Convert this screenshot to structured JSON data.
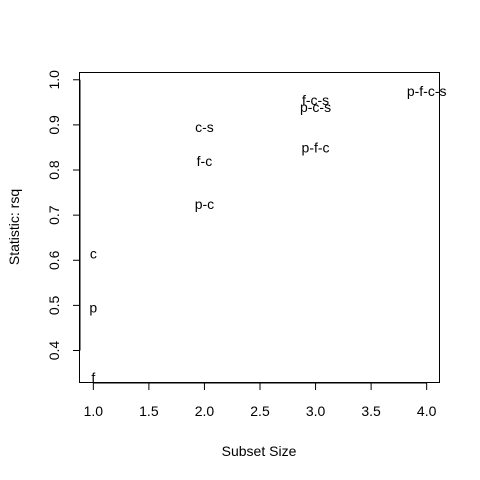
{
  "chart_data": {
    "type": "scatter",
    "title": "",
    "xlabel": "Subset Size",
    "ylabel": "Statistic: rsq",
    "xlim": [
      0.88,
      4.12
    ],
    "ylim": [
      0.328,
      1.015
    ],
    "xticks": [
      1.0,
      1.5,
      2.0,
      2.5,
      3.0,
      3.5,
      4.0
    ],
    "xtick_labels": [
      "1.0",
      "1.5",
      "2.0",
      "2.5",
      "3.0",
      "3.5",
      "4.0"
    ],
    "yticks": [
      0.4,
      0.5,
      0.6,
      0.7,
      0.8,
      0.9,
      1.0
    ],
    "ytick_labels": [
      "0.4",
      "0.5",
      "0.6",
      "0.7",
      "0.8",
      "0.9",
      "1.0"
    ],
    "grid": false,
    "points": [
      {
        "label": "f",
        "x": 1,
        "y": 0.34
      },
      {
        "label": "p",
        "x": 1,
        "y": 0.495
      },
      {
        "label": "c",
        "x": 1,
        "y": 0.615
      },
      {
        "label": "p-c",
        "x": 2,
        "y": 0.725
      },
      {
        "label": "f-c",
        "x": 2,
        "y": 0.82
      },
      {
        "label": "c-s",
        "x": 2,
        "y": 0.895
      },
      {
        "label": "p-f-c",
        "x": 3,
        "y": 0.85
      },
      {
        "label": "p-c-s",
        "x": 3,
        "y": 0.94
      },
      {
        "label": "f-c-s",
        "x": 3,
        "y": 0.955
      },
      {
        "label": "p-f-c-s",
        "x": 4,
        "y": 0.975
      }
    ]
  }
}
